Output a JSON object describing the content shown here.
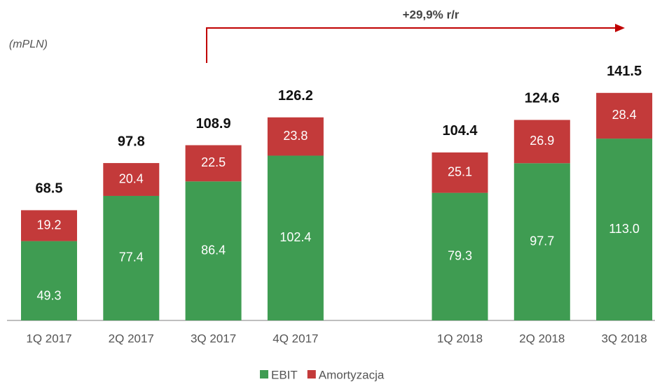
{
  "chart_data": {
    "type": "stacked_bar",
    "subtitle": "(mPLN)",
    "annotation": "+29,9% r/r",
    "categories": [
      "1Q 2017",
      "2Q 2017",
      "3Q 2017",
      "4Q 2017",
      null,
      "1Q 2018",
      "2Q 2018",
      "3Q 2018"
    ],
    "series": [
      {
        "name": "EBIT",
        "color": "#3f9c52",
        "values": [
          49.3,
          77.4,
          86.4,
          102.4,
          null,
          79.3,
          97.7,
          113.0
        ],
        "value_labels": [
          "49.3",
          "77.4",
          "86.4",
          "102.4",
          null,
          "79.3",
          "97.7",
          "113.0"
        ]
      },
      {
        "name": "Amortyzacja",
        "color": "#c33a3a",
        "values": [
          19.2,
          20.4,
          22.5,
          23.8,
          null,
          25.1,
          26.9,
          28.4
        ]
      }
    ],
    "totals": [
      68.5,
      97.8,
      108.9,
      126.2,
      null,
      104.4,
      124.6,
      141.5
    ],
    "ylim": [
      0,
      150
    ],
    "legend": "bottom"
  }
}
